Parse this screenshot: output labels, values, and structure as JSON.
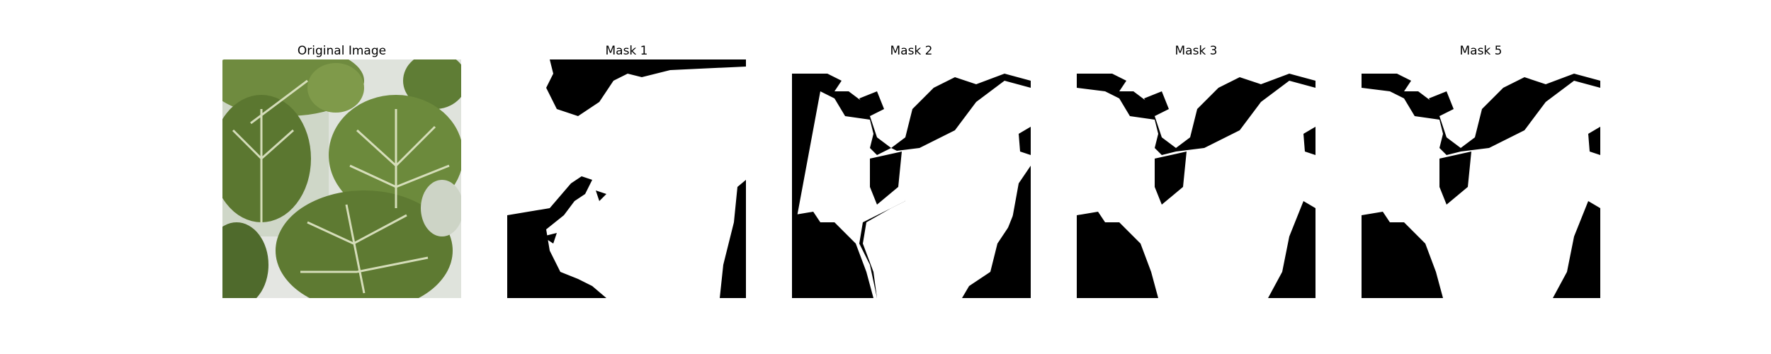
{
  "figure": {
    "panels": [
      {
        "title": "Original Image",
        "kind": "photo"
      },
      {
        "title": "Mask 1",
        "kind": "mask"
      },
      {
        "title": "Mask 2",
        "kind": "mask"
      },
      {
        "title": "Mask 3",
        "kind": "mask"
      },
      {
        "title": "Mask 5",
        "kind": "mask"
      }
    ]
  },
  "colors": {
    "background": "#ffffff",
    "mask_foreground": "#ffffff",
    "mask_background": "#000000",
    "leaf_dark": "#4f6a2c",
    "leaf_mid": "#6e8a3f",
    "leaf_light": "#8fa85a",
    "pot_white": "#d7dcd4",
    "vein": "#e2e8c8"
  }
}
